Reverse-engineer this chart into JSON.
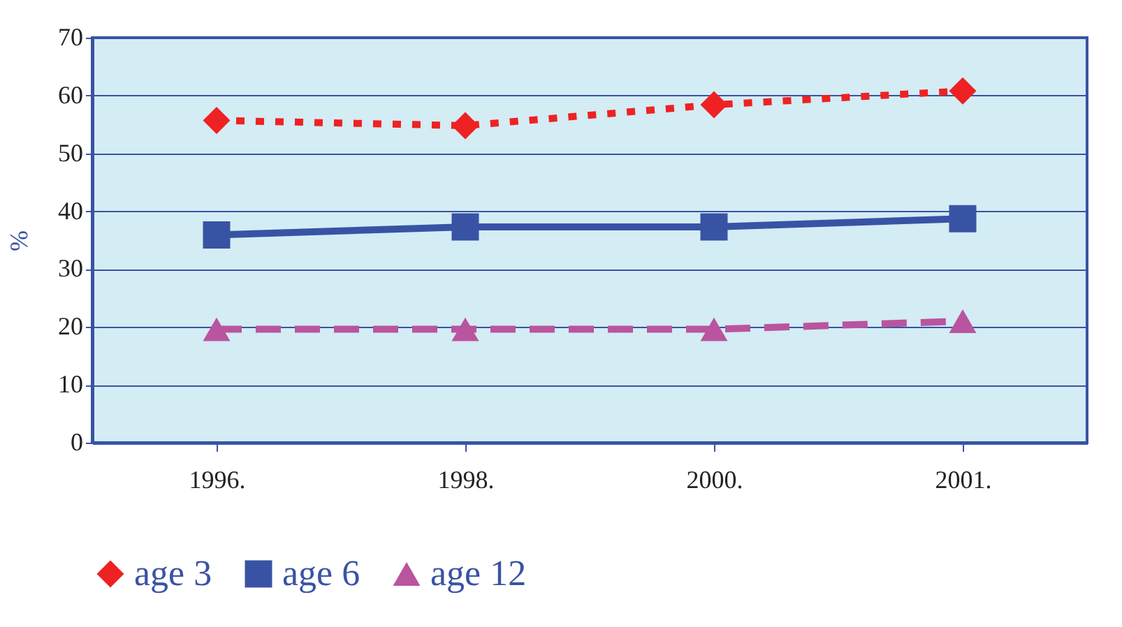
{
  "chart_data": {
    "type": "line",
    "ylabel": "%",
    "categories": [
      "1996.",
      "1998.",
      "2000.",
      "2001."
    ],
    "series": [
      {
        "name": "age 3",
        "color": "#ee2222",
        "values": [
          55.7,
          54.8,
          58.4,
          60.8
        ],
        "marker": "diamond",
        "line_style": "dotted"
      },
      {
        "name": "age 6",
        "color": "#3953a4",
        "values": [
          35.9,
          37.3,
          37.3,
          38.7
        ],
        "marker": "square",
        "line_style": "solid"
      },
      {
        "name": "age 12",
        "color": "#b9559e",
        "values": [
          19.6,
          19.6,
          19.6,
          21
        ],
        "marker": "triangle",
        "line_style": "dashed"
      }
    ],
    "ylim": [
      0,
      70
    ],
    "yticks": [
      0,
      10,
      20,
      30,
      40,
      50,
      60,
      70
    ],
    "grid": "y",
    "legend": "bottom"
  }
}
